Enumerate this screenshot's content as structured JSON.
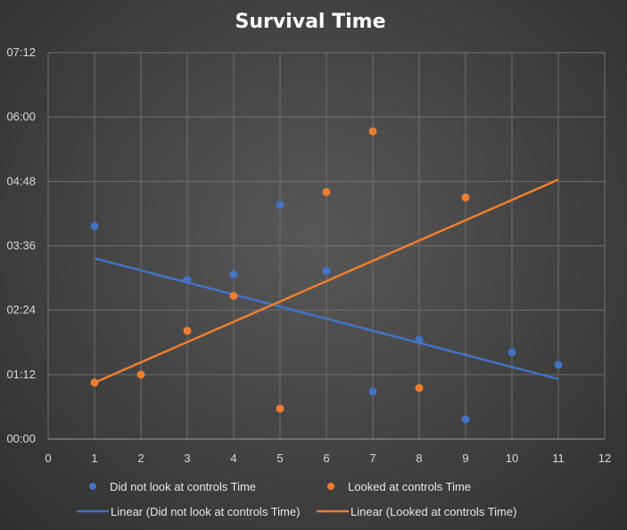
{
  "chart_data": {
    "type": "scatter",
    "title": "Survival Time",
    "xlim": [
      0,
      12
    ],
    "x_ticks": [
      "0",
      "1",
      "2",
      "3",
      "4",
      "5",
      "6",
      "7",
      "8",
      "9",
      "10",
      "11",
      "12"
    ],
    "ylim_seconds": [
      0,
      432
    ],
    "y_ticks": [
      "00:00",
      "01:12",
      "02:24",
      "03:36",
      "04:48",
      "06:00",
      "07:12"
    ],
    "grid": true,
    "legend_position": "bottom",
    "series": [
      {
        "name": "Did not look at controls Time",
        "color": "#4472c4",
        "points": [
          {
            "x": 1,
            "y": "03:58"
          },
          {
            "x": 3,
            "y": "02:58"
          },
          {
            "x": 4,
            "y": "03:04"
          },
          {
            "x": 5,
            "y": "04:22"
          },
          {
            "x": 6,
            "y": "03:08"
          },
          {
            "x": 7,
            "y": "00:53"
          },
          {
            "x": 8,
            "y": "01:51"
          },
          {
            "x": 9,
            "y": "00:22"
          },
          {
            "x": 10,
            "y": "01:37"
          },
          {
            "x": 11,
            "y": "01:23"
          }
        ]
      },
      {
        "name": "Looked at controls Time",
        "color": "#ed7d31",
        "points": [
          {
            "x": 1,
            "y": "01:03"
          },
          {
            "x": 2,
            "y": "01:12"
          },
          {
            "x": 3,
            "y": "02:01"
          },
          {
            "x": 4,
            "y": "02:40"
          },
          {
            "x": 5,
            "y": "00:34"
          },
          {
            "x": 6,
            "y": "04:36"
          },
          {
            "x": 7,
            "y": "05:44"
          },
          {
            "x": 8,
            "y": "00:57"
          },
          {
            "x": 9,
            "y": "04:30"
          }
        ]
      }
    ],
    "trendlines": [
      {
        "name": "Linear (Did not look at controls Time)",
        "color": "#4472c4",
        "x": [
          1,
          11
        ],
        "y": [
          "03:22",
          "01:07"
        ]
      },
      {
        "name": "Linear (Looked at controls Time)",
        "color": "#ed7d31",
        "x": [
          1,
          11
        ],
        "y": [
          "01:03",
          "04:50"
        ]
      }
    ]
  }
}
